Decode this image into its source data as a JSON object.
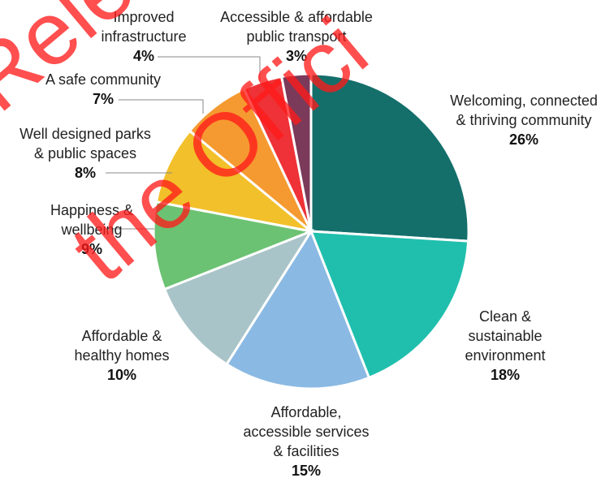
{
  "chart_data": {
    "type": "pie",
    "categories": [
      [
        "Welcoming, connected",
        "& thriving community"
      ],
      [
        "Clean &",
        "sustainable",
        "environment"
      ],
      [
        "Affordable,",
        "accessible services",
        "& facilities"
      ],
      [
        "Affordable &",
        "healthy homes"
      ],
      [
        "Happiness &",
        "wellbeing"
      ],
      [
        "Well designed parks",
        "& public spaces"
      ],
      [
        "A safe community"
      ],
      [
        "Improved",
        "infrastructure"
      ],
      [
        "Accessible & affordable",
        "public transport"
      ]
    ],
    "values": [
      26,
      18,
      15,
      10,
      9,
      8,
      7,
      4,
      3
    ],
    "value_labels": [
      "26%",
      "18%",
      "15%",
      "10%",
      "9%",
      "8%",
      "7%",
      "4%",
      "3%"
    ],
    "colors": [
      "#146f6b",
      "#20bfad",
      "#8ab9e3",
      "#a9c4c8",
      "#6cc273",
      "#f2c02a",
      "#f59a30",
      "#ee3237",
      "#7b3a5a"
    ],
    "watermark": [
      "Release",
      "the Offici"
    ]
  }
}
